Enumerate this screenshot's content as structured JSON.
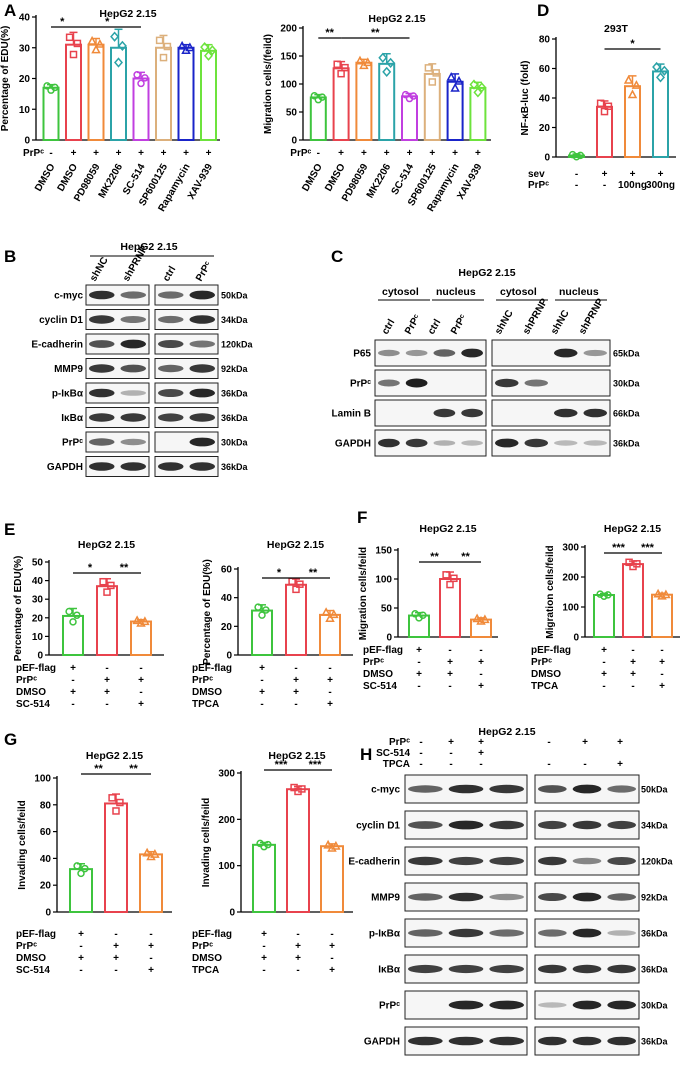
{
  "panels": {
    "A": {
      "label": "A",
      "left_chart": {
        "type": "bar",
        "title": "HepG2 2.15",
        "ylabel": "Percentage of EDU(%)",
        "ylim": [
          0,
          40
        ],
        "yticks": [
          0,
          10,
          20,
          30,
          40
        ],
        "categories": [
          "DMSO",
          "DMSO",
          "PD98059",
          "MK2206",
          "SC-514",
          "SP600125",
          "Rapamycin",
          "XAV-939"
        ],
        "prp_row": [
          "-",
          "+",
          "+",
          "+",
          "+",
          "+",
          "+",
          "+"
        ],
        "values": [
          17,
          31,
          31,
          30,
          20,
          30,
          30,
          29
        ],
        "errors": [
          1,
          4,
          2,
          6,
          2,
          4,
          1,
          2
        ],
        "colors": [
          "#3ec43e",
          "#e8424d",
          "#f08a3a",
          "#2ba3a8",
          "#c13fe0",
          "#dcb07c",
          "#1a24c9",
          "#6de33c"
        ],
        "sig": [
          {
            "from": 0,
            "to": 1,
            "text": "*"
          },
          {
            "from": 1,
            "to": 4,
            "text": "*"
          }
        ]
      },
      "right_chart": {
        "type": "bar",
        "title": "HepG2 2.15",
        "ylabel": "Migration cells/(feild)",
        "ylim": [
          0,
          200
        ],
        "yticks": [
          0,
          50,
          100,
          150,
          200
        ],
        "categories": [
          "DMSO",
          "DMSO",
          "PD98059",
          "MK2206",
          "SC-514",
          "SP600125",
          "Rapamycin",
          "XAV-939"
        ],
        "prp_row": [
          "-",
          "+",
          "+",
          "+",
          "+",
          "+",
          "+",
          "+"
        ],
        "values": [
          76,
          128,
          138,
          136,
          78,
          118,
          104,
          93
        ],
        "errors": [
          5,
          12,
          6,
          18,
          5,
          18,
          14,
          10
        ],
        "colors": [
          "#3ec43e",
          "#e8424d",
          "#f08a3a",
          "#2ba3a8",
          "#c13fe0",
          "#dcb07c",
          "#1a24c9",
          "#6de33c"
        ],
        "sig": [
          {
            "from": 0,
            "to": 1,
            "text": "**"
          },
          {
            "from": 1,
            "to": 4,
            "text": "**"
          }
        ]
      }
    },
    "D": {
      "label": "D",
      "chart": {
        "type": "bar",
        "title": "293T",
        "ylabel": "NF-κB-luc (fold)",
        "ylim": [
          0,
          80
        ],
        "yticks": [
          0,
          20,
          40,
          60,
          80
        ],
        "rows": [
          {
            "name": "sev",
            "vals": [
              "-",
              "+",
              "+",
              "+"
            ]
          },
          {
            "name": "PrPᶜ",
            "vals": [
              "-",
              "-",
              "100ng",
              "300ng"
            ]
          }
        ],
        "values": [
          1,
          34,
          48,
          58
        ],
        "errors": [
          1,
          4,
          7,
          5
        ],
        "colors": [
          "#3ec43e",
          "#e8424d",
          "#f08a3a",
          "#2ba3a8"
        ],
        "sig": [
          {
            "from": 1,
            "to": 3,
            "text": "*"
          }
        ]
      }
    },
    "E": {
      "label": "E",
      "left_chart": {
        "type": "bar",
        "title": "HepG2 2.15",
        "ylabel": "Percentage of EDU(%)",
        "ylim": [
          0,
          50
        ],
        "yticks": [
          0,
          10,
          20,
          30,
          40,
          50
        ],
        "rows": [
          {
            "name": "pEF-flag",
            "vals": [
              "+",
              "-",
              "-"
            ]
          },
          {
            "name": "PrPᶜ",
            "vals": [
              "-",
              "+",
              "+"
            ]
          },
          {
            "name": "DMSO",
            "vals": [
              "+",
              "+",
              "-"
            ]
          },
          {
            "name": "SC-514",
            "vals": [
              "-",
              "-",
              "+"
            ]
          }
        ],
        "values": [
          21,
          37,
          18
        ],
        "errors": [
          4,
          4,
          1
        ],
        "colors": [
          "#3ec43e",
          "#e8424d",
          "#f08a3a"
        ],
        "sig": [
          {
            "from": 0,
            "to": 1,
            "text": "*"
          },
          {
            "from": 1,
            "to": 2,
            "text": "**"
          }
        ]
      },
      "right_chart": {
        "type": "bar",
        "title": "HepG2 2.15",
        "ylabel": "Percentage of EDU(%)",
        "ylim": [
          0,
          60
        ],
        "yticks": [
          0,
          20,
          40,
          60
        ],
        "rows": [
          {
            "name": "pEF-flag",
            "vals": [
              "+",
              "-",
              "-"
            ]
          },
          {
            "name": "PrPᶜ",
            "vals": [
              "-",
              "+",
              "+"
            ]
          },
          {
            "name": "DMSO",
            "vals": [
              "+",
              "+",
              "-"
            ]
          },
          {
            "name": "TPCA",
            "vals": [
              "-",
              "-",
              "+"
            ]
          }
        ],
        "values": [
          31,
          49,
          28
        ],
        "errors": [
          4,
          4,
          3
        ],
        "colors": [
          "#3ec43e",
          "#e8424d",
          "#f08a3a"
        ],
        "sig": [
          {
            "from": 0,
            "to": 1,
            "text": "*"
          },
          {
            "from": 1,
            "to": 2,
            "text": "**"
          }
        ]
      }
    },
    "F": {
      "label": "F",
      "left_chart": {
        "type": "bar",
        "title": "HepG2 2.15",
        "ylabel": "Migration cells/feild",
        "ylim": [
          0,
          150
        ],
        "yticks": [
          0,
          50,
          100,
          150
        ],
        "rows": [
          {
            "name": "pEF-flag",
            "vals": [
              "+",
              "-",
              "-"
            ]
          },
          {
            "name": "PrPᶜ",
            "vals": [
              "-",
              "+",
              "+"
            ]
          },
          {
            "name": "DMSO",
            "vals": [
              "+",
              "+",
              "-"
            ]
          },
          {
            "name": "SC-514",
            "vals": [
              "-",
              "-",
              "+"
            ]
          }
        ],
        "values": [
          37,
          100,
          30
        ],
        "errors": [
          5,
          12,
          3
        ],
        "colors": [
          "#3ec43e",
          "#e8424d",
          "#f08a3a"
        ],
        "sig": [
          {
            "from": 0,
            "to": 1,
            "text": "**"
          },
          {
            "from": 1,
            "to": 2,
            "text": "**"
          }
        ]
      },
      "right_chart": {
        "type": "bar",
        "title": "HepG2 2.15",
        "ylabel": "Migration cells/feild",
        "ylim": [
          0,
          300
        ],
        "yticks": [
          0,
          100,
          200,
          300
        ],
        "rows": [
          {
            "name": "pEF-flag",
            "vals": [
              "+",
              "-",
              "-"
            ]
          },
          {
            "name": "PrPᶜ",
            "vals": [
              "-",
              "+",
              "+"
            ]
          },
          {
            "name": "DMSO",
            "vals": [
              "+",
              "+",
              "-"
            ]
          },
          {
            "name": "TPCA",
            "vals": [
              "-",
              "-",
              "+"
            ]
          }
        ],
        "values": [
          140,
          243,
          141
        ],
        "errors": [
          5,
          10,
          5
        ],
        "colors": [
          "#3ec43e",
          "#e8424d",
          "#f08a3a"
        ],
        "sig": [
          {
            "from": 0,
            "to": 1,
            "text": "***"
          },
          {
            "from": 1,
            "to": 2,
            "text": "***"
          }
        ]
      }
    },
    "G": {
      "label": "G",
      "left_chart": {
        "type": "bar",
        "title": "HepG2 2.15",
        "ylabel": "Invading cells/feild",
        "ylim": [
          0,
          100
        ],
        "yticks": [
          0,
          20,
          40,
          60,
          80,
          100
        ],
        "rows": [
          {
            "name": "pEF-flag",
            "vals": [
              "+",
              "-",
              "-"
            ]
          },
          {
            "name": "PrPᶜ",
            "vals": [
              "-",
              "+",
              "+"
            ]
          },
          {
            "name": "DMSO",
            "vals": [
              "+",
              "+",
              "-"
            ]
          },
          {
            "name": "SC-514",
            "vals": [
              "-",
              "-",
              "+"
            ]
          }
        ],
        "values": [
          32,
          81,
          43
        ],
        "errors": [
          4,
          7,
          2
        ],
        "colors": [
          "#3ec43e",
          "#e8424d",
          "#f08a3a"
        ],
        "sig": [
          {
            "from": 0,
            "to": 1,
            "text": "**"
          },
          {
            "from": 1,
            "to": 2,
            "text": "**"
          }
        ]
      },
      "right_chart": {
        "type": "bar",
        "title": "HepG2 2.15",
        "ylabel": "Invading cells/feild",
        "ylim": [
          0,
          300
        ],
        "yticks": [
          0,
          100,
          200,
          300
        ],
        "rows": [
          {
            "name": "pEF-flag",
            "vals": [
              "+",
              "-",
              "-"
            ]
          },
          {
            "name": "PrPᶜ",
            "vals": [
              "-",
              "+",
              "+"
            ]
          },
          {
            "name": "DMSO",
            "vals": [
              "+",
              "+",
              "-"
            ]
          },
          {
            "name": "TPCA",
            "vals": [
              "-",
              "-",
              "+"
            ]
          }
        ],
        "values": [
          145,
          265,
          142
        ],
        "errors": [
          5,
          6,
          5
        ],
        "colors": [
          "#3ec43e",
          "#e8424d",
          "#f08a3a"
        ],
        "sig": [
          {
            "from": 0,
            "to": 1,
            "text": "***"
          },
          {
            "from": 1,
            "to": 2,
            "text": "***"
          }
        ]
      }
    },
    "B": {
      "label": "B",
      "title": "HepG2 2.15",
      "left_cols": [
        "shNC",
        "shPRNP"
      ],
      "right_cols": [
        "ctrl",
        "PrPᶜ"
      ],
      "rows": [
        {
          "name": "c-myc",
          "kda": "50kDa",
          "l": [
            0.9,
            0.55
          ],
          "r": [
            0.55,
            0.95
          ]
        },
        {
          "name": "cyclin D1",
          "kda": "34kDa",
          "l": [
            0.85,
            0.5
          ],
          "r": [
            0.55,
            0.9
          ]
        },
        {
          "name": "E-cadherin",
          "kda": "120kDa",
          "l": [
            0.7,
            0.95
          ],
          "r": [
            0.75,
            0.5
          ]
        },
        {
          "name": "MMP9",
          "kda": "92kDa",
          "l": [
            0.85,
            0.7
          ],
          "r": [
            0.6,
            0.85
          ]
        },
        {
          "name": "p-IκBα",
          "kda": "36kDa",
          "l": [
            0.9,
            0.15
          ],
          "r": [
            0.75,
            0.95
          ]
        },
        {
          "name": "IκBα",
          "kda": "36kDa",
          "l": [
            0.85,
            0.85
          ],
          "r": [
            0.8,
            0.85
          ]
        },
        {
          "name": "PrPᶜ",
          "kda": "30kDa",
          "l": [
            0.6,
            0.35
          ],
          "r": [
            0.0,
            0.95
          ]
        },
        {
          "name": "GAPDH",
          "kda": "36kDa",
          "l": [
            0.9,
            0.9
          ],
          "r": [
            0.9,
            0.9
          ]
        }
      ]
    },
    "C": {
      "label": "C",
      "title": "HepG2 2.15",
      "groups": [
        "cytosol",
        "nucleus",
        "cytosol",
        "nucleus"
      ],
      "left_cols": [
        "ctrl",
        "PrPᶜ",
        "ctrl",
        "PrPᶜ"
      ],
      "right_cols": [
        "shNC",
        "shPRNP",
        "shNC",
        "shPRNP"
      ],
      "rows": [
        {
          "name": "P65",
          "kda": "65kDa",
          "l": [
            0.35,
            0.3,
            0.6,
            0.95
          ],
          "r": [
            0.0,
            0.0,
            0.95,
            0.3
          ]
        },
        {
          "name": "PrPᶜ",
          "kda": "30kDa",
          "l": [
            0.5,
            1.0,
            0.0,
            0.0
          ],
          "r": [
            0.85,
            0.5,
            0.0,
            0.0
          ]
        },
        {
          "name": "Lamin B",
          "kda": "66kDa",
          "l": [
            0.0,
            0.0,
            0.85,
            0.85
          ],
          "r": [
            0.0,
            0.0,
            0.9,
            0.9
          ]
        },
        {
          "name": "GAPDH",
          "kda": "36kDa",
          "l": [
            0.9,
            0.85,
            0.15,
            0.1
          ],
          "r": [
            0.95,
            0.85,
            0.1,
            0.1
          ]
        }
      ]
    },
    "H": {
      "label": "H",
      "title": "HepG2 2.15",
      "treat_rows": [
        {
          "name": "PrPᶜ",
          "l": [
            "-",
            "+",
            "+"
          ],
          "r": [
            "-",
            "+",
            "+"
          ]
        },
        {
          "name": "SC-514",
          "l": [
            "-",
            "-",
            "+"
          ],
          "r": [
            "",
            "",
            ""
          ]
        },
        {
          "name": "TPCA",
          "l": [
            "-",
            "-",
            "-"
          ],
          "r": [
            "-",
            "-",
            "+"
          ]
        }
      ],
      "rows": [
        {
          "name": "c-myc",
          "kda": "50kDa",
          "l": [
            0.6,
            0.9,
            0.85
          ],
          "r": [
            0.7,
            0.95,
            0.55
          ]
        },
        {
          "name": "cyclin D1",
          "kda": "34kDa",
          "l": [
            0.7,
            0.95,
            0.85
          ],
          "r": [
            0.8,
            0.85,
            0.8
          ]
        },
        {
          "name": "E-cadherin",
          "kda": "120kDa",
          "l": [
            0.85,
            0.8,
            0.8
          ],
          "r": [
            0.85,
            0.4,
            0.75
          ]
        },
        {
          "name": "MMP9",
          "kda": "92kDa",
          "l": [
            0.6,
            0.9,
            0.35
          ],
          "r": [
            0.75,
            0.95,
            0.6
          ]
        },
        {
          "name": "p-IκBα",
          "kda": "36kDa",
          "l": [
            0.6,
            0.85,
            0.55
          ],
          "r": [
            0.55,
            0.95,
            0.15
          ]
        },
        {
          "name": "IκBα",
          "kda": "36kDa",
          "l": [
            0.8,
            0.8,
            0.8
          ],
          "r": [
            0.85,
            0.85,
            0.85
          ]
        },
        {
          "name": "PrPᶜ",
          "kda": "30kDa",
          "l": [
            0.0,
            0.95,
            0.95
          ],
          "r": [
            0.1,
            0.95,
            0.95
          ]
        },
        {
          "name": "GAPDH",
          "kda": "36kDa",
          "l": [
            0.9,
            0.9,
            0.9
          ],
          "r": [
            0.9,
            0.9,
            0.9
          ]
        }
      ]
    }
  }
}
